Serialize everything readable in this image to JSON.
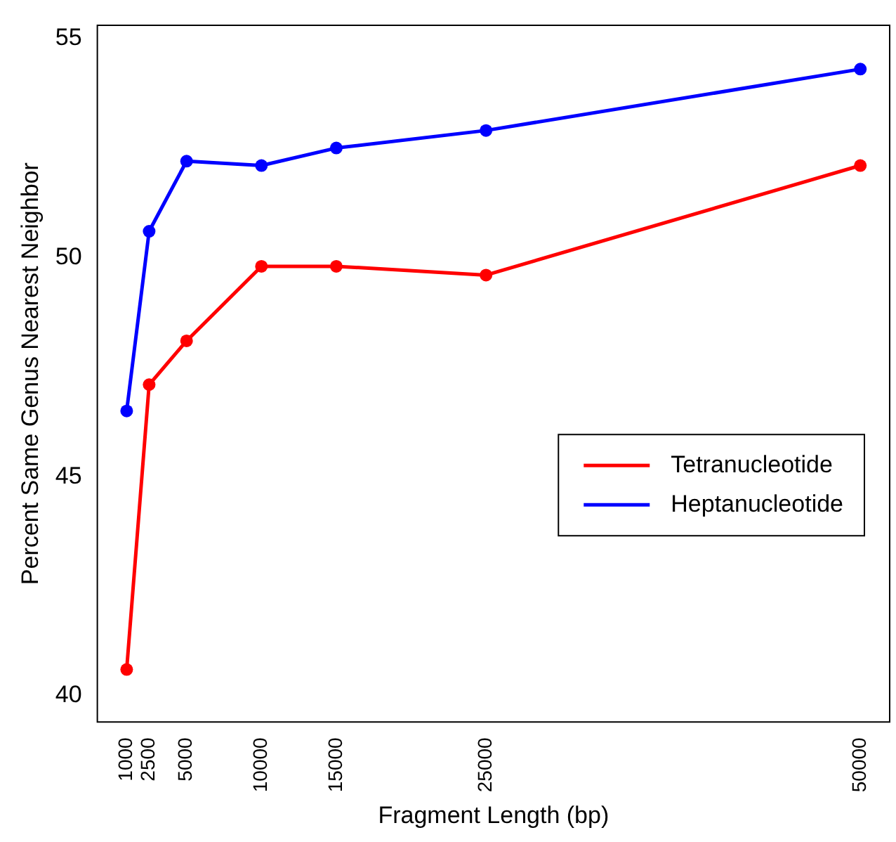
{
  "chart_data": {
    "type": "line",
    "xlabel": "Fragment Length (bp)",
    "ylabel": "Percent Same Genus Nearest Neighbor",
    "x": [
      1000,
      2500,
      5000,
      10000,
      15000,
      25000,
      50000
    ],
    "series": [
      {
        "name": "Tetranucleotide",
        "color": "#ff0000",
        "values": [
          40.6,
          47.1,
          48.1,
          49.8,
          49.8,
          49.6,
          52.1
        ]
      },
      {
        "name": "Heptanucleotide",
        "color": "#0000ff",
        "values": [
          46.5,
          50.6,
          52.2,
          52.1,
          52.5,
          52.9,
          54.3
        ]
      }
    ],
    "xlim": [
      -960,
      51960
    ],
    "ylim": [
      39.4,
      55.3
    ],
    "xticks": [
      1000,
      2500,
      5000,
      10000,
      15000,
      25000,
      50000
    ],
    "yticks": [
      40,
      45,
      50,
      55
    ],
    "grid": false,
    "legend": "right",
    "marker": "circle",
    "line_style": "solid"
  }
}
